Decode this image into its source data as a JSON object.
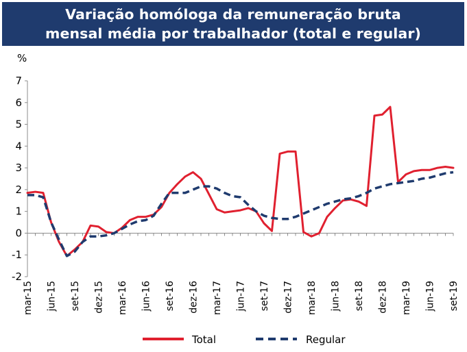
{
  "title_line1": "Variação homóloga da remuneração bruta",
  "title_line2": "mensal média por trabalhador (total e regular)",
  "chart_data": {
    "type": "line",
    "title": "Variação homóloga da remuneração bruta mensal média por trabalhador (total e regular)",
    "ylabel": "%",
    "xlabel": "",
    "ylim": [
      -2,
      7
    ],
    "yticks": [
      "-2",
      "-1",
      "0",
      "1",
      "2",
      "3",
      "4",
      "5",
      "6",
      "7"
    ],
    "grid": false,
    "legend_position": "bottom",
    "x_tick_labels": [
      "mar-15",
      "jun-15",
      "set-15",
      "dez-15",
      "mar-16",
      "jun-16",
      "set-16",
      "dez-16",
      "mar-17",
      "jun-17",
      "set-17",
      "dez-17",
      "mar-18",
      "jun-18",
      "set-18",
      "dez-18",
      "mar-19",
      "jun-19",
      "set-19"
    ],
    "x": [
      "mar-15",
      "abr-15",
      "mai-15",
      "jun-15",
      "jul-15",
      "ago-15",
      "set-15",
      "out-15",
      "nov-15",
      "dez-15",
      "jan-16",
      "fev-16",
      "mar-16",
      "abr-16",
      "mai-16",
      "jun-16",
      "jul-16",
      "ago-16",
      "set-16",
      "out-16",
      "nov-16",
      "dez-16",
      "jan-17",
      "fev-17",
      "mar-17",
      "abr-17",
      "mai-17",
      "jun-17",
      "jul-17",
      "ago-17",
      "set-17",
      "out-17",
      "nov-17",
      "dez-17",
      "jan-18",
      "fev-18",
      "mar-18",
      "abr-18",
      "mai-18",
      "jun-18",
      "jul-18",
      "ago-18",
      "set-18",
      "out-18",
      "nov-18",
      "dez-18",
      "jan-19",
      "fev-19",
      "mar-19",
      "abr-19",
      "mai-19",
      "jun-19",
      "jul-19",
      "ago-19",
      "set-19"
    ],
    "series": [
      {
        "name": "Total",
        "color": "#e0202f",
        "style": "solid",
        "values": [
          1.85,
          1.9,
          1.85,
          0.5,
          -0.4,
          -1.05,
          -0.75,
          -0.4,
          0.35,
          0.3,
          0.05,
          0.0,
          0.25,
          0.6,
          0.75,
          0.75,
          0.85,
          1.2,
          1.85,
          2.25,
          2.6,
          2.8,
          2.5,
          1.8,
          1.1,
          0.95,
          1.0,
          1.05,
          1.15,
          1.0,
          0.45,
          0.1,
          3.65,
          3.75,
          3.75,
          0.05,
          -0.15,
          0.0,
          0.75,
          1.15,
          1.5,
          1.55,
          1.45,
          1.25,
          5.4,
          5.45,
          5.8,
          2.35,
          2.7,
          2.85,
          2.9,
          2.9,
          3.0,
          3.05,
          3.0
        ]
      },
      {
        "name": "Regular",
        "color": "#1f3b6e",
        "style": "dashed",
        "values": [
          1.75,
          1.75,
          1.65,
          0.5,
          -0.3,
          -1.05,
          -0.85,
          -0.4,
          -0.15,
          -0.15,
          -0.1,
          0.0,
          0.2,
          0.4,
          0.55,
          0.6,
          0.8,
          1.35,
          1.85,
          1.85,
          1.85,
          2.0,
          2.15,
          2.15,
          2.05,
          1.85,
          1.7,
          1.65,
          1.3,
          1.0,
          0.8,
          0.7,
          0.65,
          0.65,
          0.75,
          0.9,
          1.05,
          1.2,
          1.35,
          1.45,
          1.55,
          1.6,
          1.7,
          1.85,
          2.05,
          2.15,
          2.25,
          2.3,
          2.35,
          2.4,
          2.5,
          2.55,
          2.65,
          2.75,
          2.8
        ]
      }
    ]
  }
}
